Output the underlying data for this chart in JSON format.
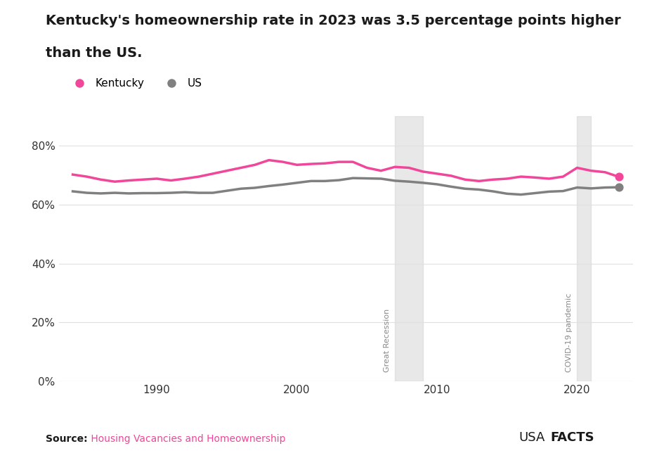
{
  "title_line1": "Kentucky's homeownership rate in 2023 was 3.5 percentage points higher",
  "title_line2": "than the US.",
  "kentucky_data": {
    "years": [
      1984,
      1985,
      1986,
      1987,
      1988,
      1989,
      1990,
      1991,
      1992,
      1993,
      1994,
      1995,
      1996,
      1997,
      1998,
      1999,
      2000,
      2001,
      2002,
      2003,
      2004,
      2005,
      2006,
      2007,
      2008,
      2009,
      2010,
      2011,
      2012,
      2013,
      2014,
      2015,
      2016,
      2017,
      2018,
      2019,
      2020,
      2021,
      2022,
      2023
    ],
    "values": [
      70.2,
      69.5,
      68.5,
      67.8,
      68.2,
      68.5,
      68.8,
      68.2,
      68.8,
      69.5,
      70.5,
      71.5,
      72.5,
      73.5,
      75.1,
      74.5,
      73.5,
      73.8,
      74.0,
      74.5,
      74.5,
      72.5,
      71.5,
      72.8,
      72.5,
      71.2,
      70.5,
      69.8,
      68.5,
      68.0,
      68.5,
      68.8,
      69.5,
      69.2,
      68.8,
      69.5,
      72.5,
      71.5,
      71.0,
      69.4
    ]
  },
  "us_data": {
    "years": [
      1984,
      1985,
      1986,
      1987,
      1988,
      1989,
      1990,
      1991,
      1992,
      1993,
      1994,
      1995,
      1996,
      1997,
      1998,
      1999,
      2000,
      2001,
      2002,
      2003,
      2004,
      2005,
      2006,
      2007,
      2008,
      2009,
      2010,
      2011,
      2012,
      2013,
      2014,
      2015,
      2016,
      2017,
      2018,
      2019,
      2020,
      2021,
      2022,
      2023
    ],
    "values": [
      64.5,
      64.0,
      63.8,
      64.0,
      63.8,
      63.9,
      63.9,
      64.0,
      64.2,
      64.0,
      64.0,
      64.7,
      65.4,
      65.7,
      66.3,
      66.8,
      67.4,
      68.0,
      68.0,
      68.3,
      69.0,
      68.9,
      68.8,
      68.1,
      67.8,
      67.4,
      66.9,
      66.1,
      65.4,
      65.1,
      64.5,
      63.7,
      63.4,
      63.9,
      64.4,
      64.6,
      65.8,
      65.5,
      65.8,
      65.9
    ]
  },
  "kentucky_color": "#f0479a",
  "us_color": "#808080",
  "recession_start": 2007,
  "recession_end": 2009,
  "covid_start": 2020,
  "covid_end": 2021,
  "recession_label": "Great Recession",
  "covid_label": "COVID-19 pandemic",
  "shade_color": "#d3d3d3",
  "shade_alpha": 0.5,
  "ylim": [
    0,
    90
  ],
  "yticks": [
    0,
    20,
    40,
    60,
    80
  ],
  "xlim": [
    1983,
    2024
  ],
  "source_bold": "Source:",
  "source_rest": " Housing Vacancies and Homeownership",
  "source_color": "#f0479a",
  "usafacts_normal": "USA",
  "usafacts_bold": "FACTS",
  "legend_kentucky": "Kentucky",
  "legend_us": "US",
  "background_color": "#ffffff",
  "grid_color": "#e0e0e0",
  "line_width": 2.5
}
